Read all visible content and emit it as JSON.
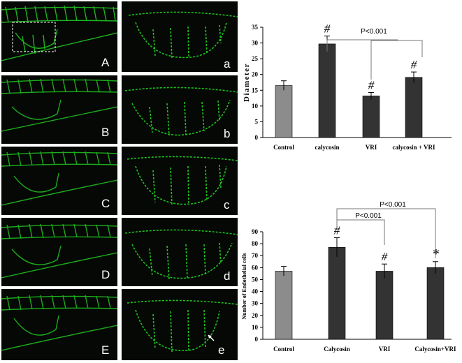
{
  "figure": {
    "panel_labels_left": [
      "A",
      "B",
      "C",
      "D",
      "E"
    ],
    "panel_labels_right": [
      "a",
      "b",
      "c",
      "d",
      "e"
    ],
    "colors": {
      "fluorescence": "#22d422",
      "background": "#050805",
      "control_bar": "#8c8c8c",
      "treatment_bar": "#333333"
    }
  },
  "chart_data": [
    {
      "type": "bar",
      "title": "",
      "xlabel": "",
      "ylabel": "Diameter",
      "ylim": [
        0,
        35
      ],
      "yticks": [
        0,
        5,
        10,
        15,
        20,
        25,
        30,
        35
      ],
      "categories": [
        "Control",
        "calycosin",
        "VRI",
        "calycosin + VRI"
      ],
      "values": [
        16.5,
        29.7,
        13.2,
        19.1
      ],
      "errors": [
        1.5,
        2.5,
        1.1,
        1.7
      ],
      "markers": [
        "",
        "#",
        "#",
        "#"
      ],
      "bar_colors": [
        "#8c8c8c",
        "#333333",
        "#333333",
        "#333333"
      ],
      "annotations": [
        "P<0.001"
      ],
      "grid": false
    },
    {
      "type": "bar",
      "title": "",
      "xlabel": "",
      "ylabel": "Number of Endothelial cells",
      "ylim": [
        0,
        90
      ],
      "yticks": [
        0,
        10,
        20,
        30,
        40,
        50,
        60,
        70,
        80,
        90
      ],
      "categories": [
        "Control",
        "Calycosin",
        "VRI",
        "Calycosin+VRI"
      ],
      "values": [
        57,
        77,
        57,
        60
      ],
      "errors": [
        4,
        8,
        6,
        5
      ],
      "markers": [
        "",
        "#",
        "#",
        "*"
      ],
      "bar_colors": [
        "#8c8c8c",
        "#333333",
        "#333333",
        "#333333"
      ],
      "annotations": [
        "P<0.001",
        "P<0.001"
      ],
      "grid": false
    }
  ]
}
